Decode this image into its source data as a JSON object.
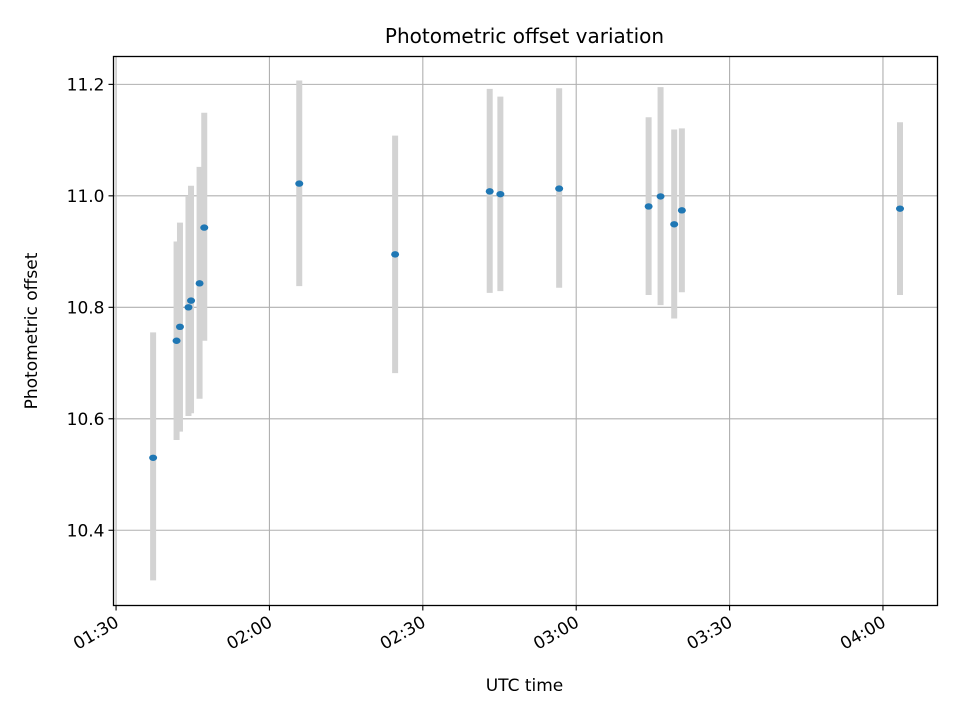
{
  "chart_data": {
    "type": "scatter",
    "title": "Photometric offset variation",
    "xlabel": "UTC time",
    "ylabel": "Photometric offset",
    "x_axis": {
      "kind": "time",
      "range": [
        "01:29:30",
        "04:10:40"
      ],
      "ticks": [
        "01:30",
        "02:00",
        "02:30",
        "03:00",
        "03:30",
        "04:00"
      ]
    },
    "y_axis": {
      "range": [
        10.265,
        11.25
      ],
      "ticks": [
        10.4,
        10.6,
        10.8,
        11.0,
        11.2
      ]
    },
    "grid": true,
    "colors": {
      "point": "#1f77b4",
      "errorbar": "#d3d3d3",
      "grid": "#b0b0b0"
    },
    "points": [
      {
        "x": "01:37:15",
        "y": 10.53,
        "low": 10.31,
        "high": 10.755
      },
      {
        "x": "01:41:50",
        "y": 10.74,
        "low": 10.562,
        "high": 10.918
      },
      {
        "x": "01:42:30",
        "y": 10.765,
        "low": 10.577,
        "high": 10.952
      },
      {
        "x": "01:44:10",
        "y": 10.8,
        "low": 10.605,
        "high": 11.0
      },
      {
        "x": "01:44:40",
        "y": 10.812,
        "low": 10.61,
        "high": 11.018
      },
      {
        "x": "01:46:20",
        "y": 10.843,
        "low": 10.636,
        "high": 11.052
      },
      {
        "x": "01:47:15",
        "y": 10.943,
        "low": 10.74,
        "high": 11.149
      },
      {
        "x": "02:05:50",
        "y": 11.022,
        "low": 10.838,
        "high": 11.207
      },
      {
        "x": "02:24:35",
        "y": 10.895,
        "low": 10.682,
        "high": 11.108
      },
      {
        "x": "02:43:05",
        "y": 11.008,
        "low": 10.826,
        "high": 11.192
      },
      {
        "x": "02:45:10",
        "y": 11.003,
        "low": 10.829,
        "high": 11.178
      },
      {
        "x": "02:56:40",
        "y": 11.013,
        "low": 10.835,
        "high": 11.193
      },
      {
        "x": "03:14:10",
        "y": 10.981,
        "low": 10.822,
        "high": 11.141
      },
      {
        "x": "03:16:30",
        "y": 10.999,
        "low": 10.804,
        "high": 11.195
      },
      {
        "x": "03:19:10",
        "y": 10.949,
        "low": 10.78,
        "high": 11.119
      },
      {
        "x": "03:20:40",
        "y": 10.974,
        "low": 10.827,
        "high": 11.121
      },
      {
        "x": "04:03:20",
        "y": 10.977,
        "low": 10.822,
        "high": 11.132
      }
    ]
  }
}
